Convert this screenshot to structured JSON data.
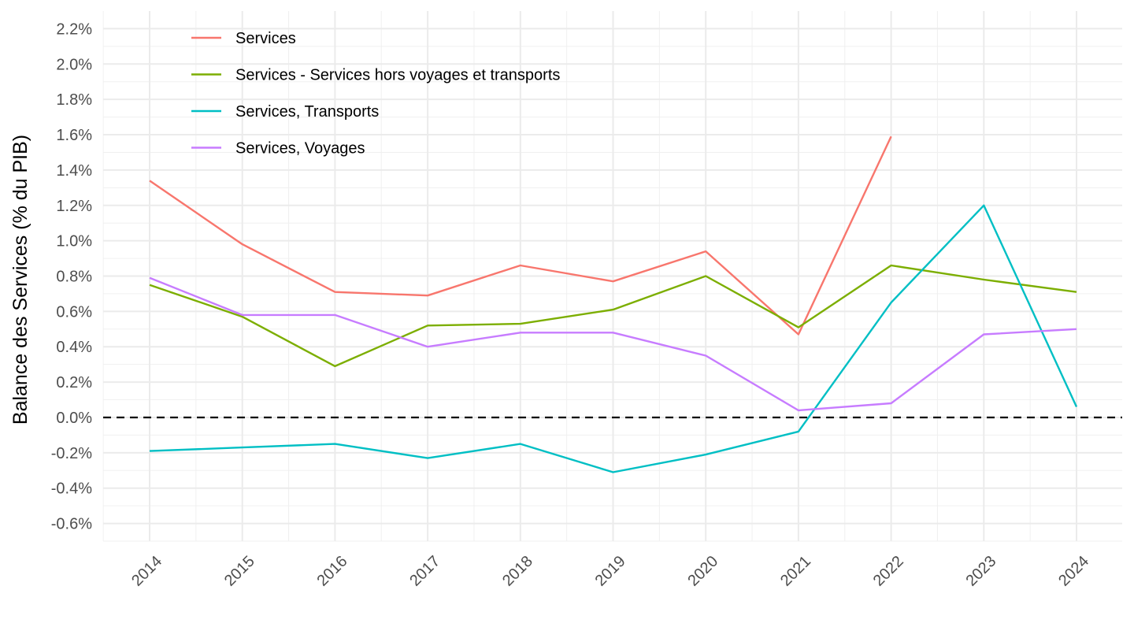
{
  "chart_data": {
    "type": "line",
    "ylabel": "Balance des Services (% du PIB)",
    "xlabel": "",
    "x": [
      "2014",
      "2015",
      "2016",
      "2017",
      "2018",
      "2019",
      "2020",
      "2021",
      "2022",
      "2023",
      "2024"
    ],
    "ylim": [
      -0.7,
      2.3
    ],
    "y_ticks": [
      "-0.6%",
      "-0.4%",
      "-0.2%",
      "0.0%",
      "0.2%",
      "0.4%",
      "0.6%",
      "0.8%",
      "1.0%",
      "1.2%",
      "1.4%",
      "1.6%",
      "1.8%",
      "2.0%",
      "2.2%"
    ],
    "y_tick_values": [
      -0.6,
      -0.4,
      -0.2,
      0.0,
      0.2,
      0.4,
      0.6,
      0.8,
      1.0,
      1.2,
      1.4,
      1.6,
      1.8,
      2.0,
      2.2
    ],
    "reference_line": {
      "value": 0,
      "style": "dashed",
      "color": "#000000"
    },
    "grid": true,
    "legend_position": "top-left inside",
    "series": [
      {
        "name": "Services",
        "color": "#F8766D",
        "values": [
          1.34,
          0.98,
          0.71,
          0.69,
          0.86,
          0.77,
          0.94,
          0.47,
          1.59,
          null,
          null
        ]
      },
      {
        "name": "Services - Services hors voyages et transports",
        "color": "#7CAE00",
        "values": [
          0.75,
          0.57,
          0.29,
          0.52,
          0.53,
          0.61,
          0.8,
          0.51,
          0.86,
          0.78,
          0.71
        ]
      },
      {
        "name": "Services, Transports",
        "color": "#00BFC4",
        "values": [
          -0.19,
          -0.17,
          -0.15,
          -0.23,
          -0.15,
          -0.31,
          -0.21,
          -0.08,
          0.65,
          1.2,
          0.06
        ]
      },
      {
        "name": "Services, Voyages",
        "color": "#C77CFF",
        "values": [
          0.79,
          0.58,
          0.58,
          0.4,
          0.48,
          0.48,
          0.35,
          0.04,
          0.08,
          0.47,
          0.5
        ]
      }
    ]
  }
}
